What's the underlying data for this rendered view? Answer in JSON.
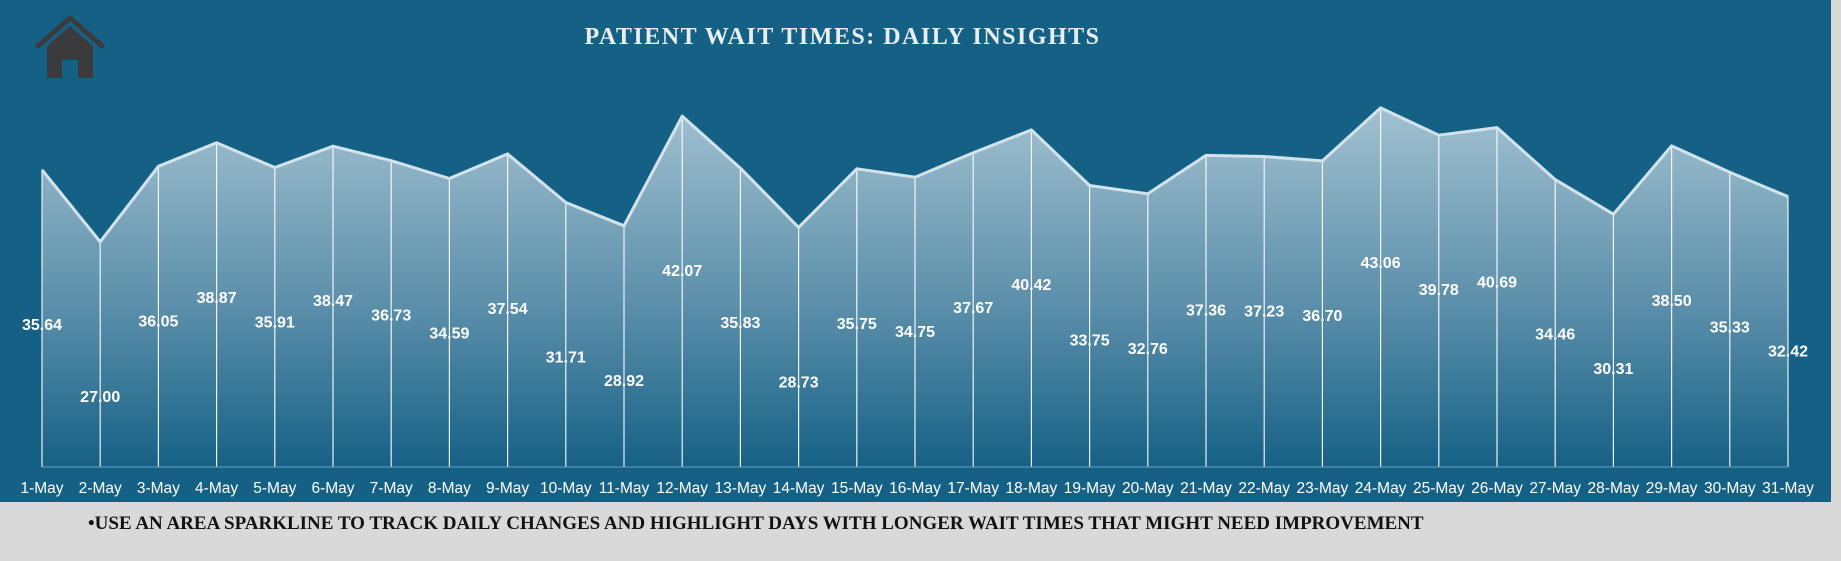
{
  "colors": {
    "panel_bg": "#156185",
    "page_bg": "#d9d9d9",
    "area_top": "#a6c4d3",
    "area_bottom": "#156185",
    "line": "#d3e3ec"
  },
  "header": {
    "home_icon": "home-icon"
  },
  "chart_data": {
    "type": "area",
    "title": "PATIENT WAIT TIMES: DAILY INSIGHTS",
    "xlabel": "",
    "ylabel": "",
    "ylim": [
      0,
      50
    ],
    "grid": false,
    "legend": "none",
    "categories": [
      "1-May",
      "2-May",
      "3-May",
      "4-May",
      "5-May",
      "6-May",
      "7-May",
      "8-May",
      "9-May",
      "10-May",
      "11-May",
      "12-May",
      "13-May",
      "14-May",
      "15-May",
      "16-May",
      "17-May",
      "18-May",
      "19-May",
      "20-May",
      "21-May",
      "22-May",
      "23-May",
      "24-May",
      "25-May",
      "26-May",
      "27-May",
      "28-May",
      "29-May",
      "30-May",
      "31-May"
    ],
    "values": [
      35.64,
      27.0,
      36.05,
      38.87,
      35.91,
      38.47,
      36.73,
      34.59,
      37.54,
      31.71,
      28.92,
      42.07,
      35.83,
      28.73,
      35.75,
      34.75,
      37.67,
      40.42,
      33.75,
      32.76,
      37.36,
      37.23,
      36.7,
      43.06,
      39.78,
      40.69,
      34.46,
      30.31,
      38.5,
      35.33,
      32.42
    ],
    "data_labels": [
      "35.64",
      "27.00",
      "36.05",
      "38.87",
      "35.91",
      "38.47",
      "36.73",
      "34.59",
      "37.54",
      "31.71",
      "28.92",
      "42.07",
      "35.83",
      "28.73",
      "35.75",
      "34.75",
      "37.67",
      "40.42",
      "33.75",
      "32.76",
      "37.36",
      "37.23",
      "36.70",
      "43.06",
      "39.78",
      "40.69",
      "34.46",
      "30.31",
      "38.50",
      "35.33",
      "32.42"
    ]
  },
  "footnote": "•USE AN AREA SPARKLINE TO TRACK DAILY CHANGES AND HIGHLIGHT DAYS WITH LONGER WAIT TIMES THAT MIGHT NEED IMPROVEMENT"
}
